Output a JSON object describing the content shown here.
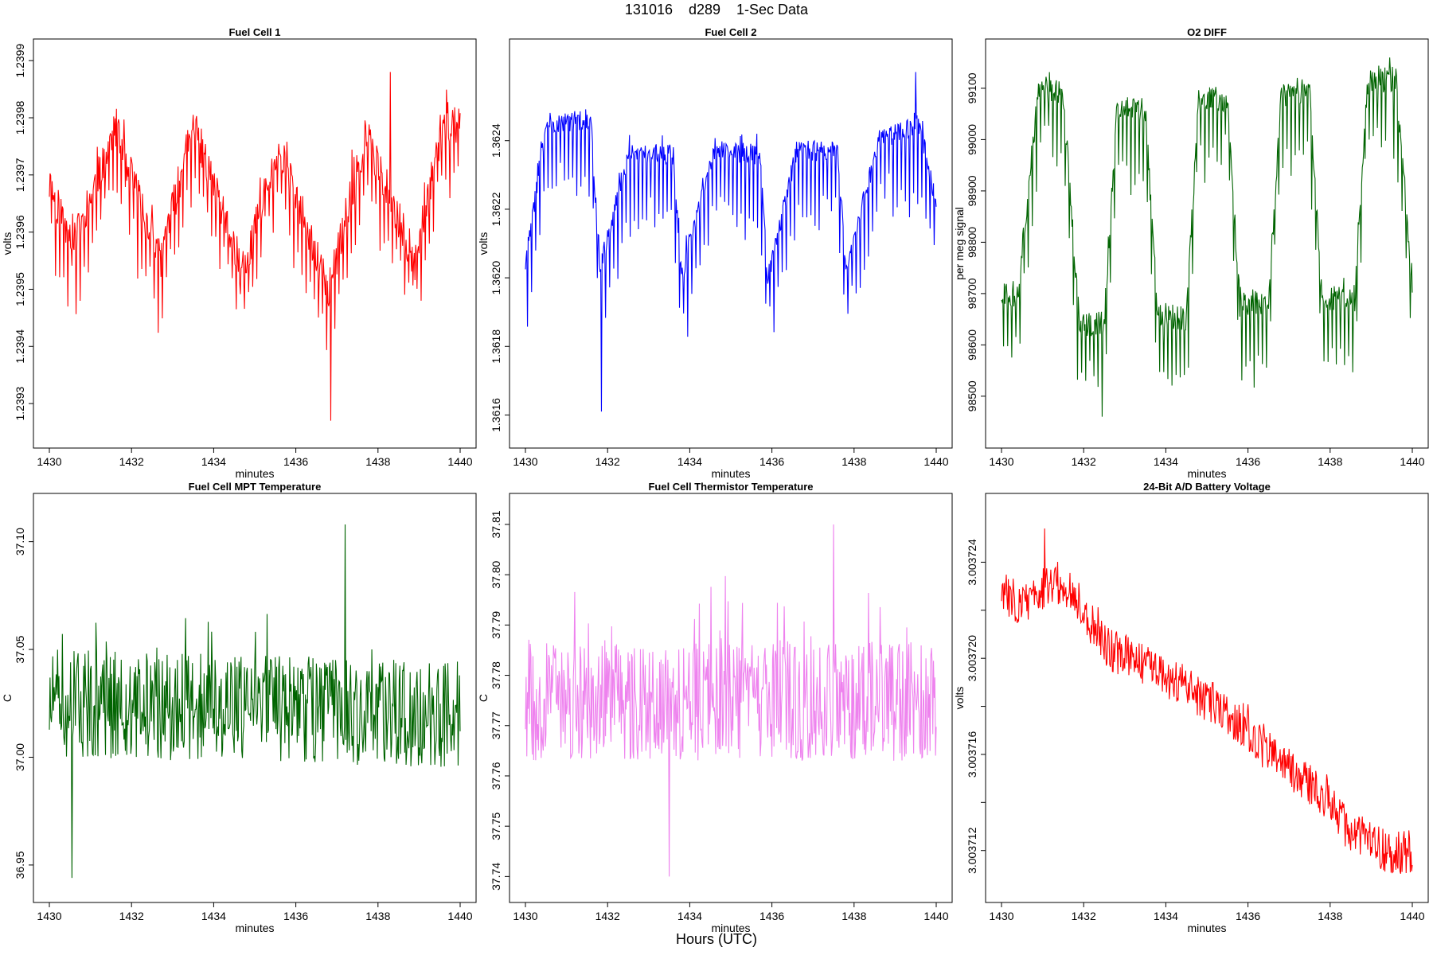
{
  "figure": {
    "title": "131016    d289    1-Sec Data",
    "xlabel": "Hours (UTC)"
  },
  "chart_data": [
    {
      "type": "line",
      "title": "Fuel Cell 1",
      "xlabel": "minutes",
      "ylabel": "volts",
      "color": "#ff0000",
      "xlim": [
        1430,
        1440
      ],
      "ylim": [
        1.23925,
        1.23991
      ],
      "xticks": [
        1430,
        1432,
        1434,
        1436,
        1438,
        1440
      ],
      "yticks": [
        1.2393,
        1.2394,
        1.2395,
        1.2396,
        1.2397,
        1.2398,
        1.2399
      ],
      "ytick_labels": [
        "1.2393",
        "1.2394",
        "1.2395",
        "1.2396",
        "1.2397",
        "1.2398",
        "1.2399"
      ],
      "pattern": {
        "levels": [
          [
            1430.0,
            1.23968
          ],
          [
            1430.6,
            1.23958
          ],
          [
            1431.6,
            1.23978
          ],
          [
            1432.7,
            1.23955
          ],
          [
            1433.5,
            1.23979
          ],
          [
            1434.7,
            1.23953
          ],
          [
            1435.6,
            1.23975
          ],
          [
            1436.8,
            1.2395
          ],
          [
            1437.7,
            1.23977
          ],
          [
            1438.9,
            1.23955
          ],
          [
            1439.6,
            1.2398
          ],
          [
            1440.0,
            1.23978
          ]
        ],
        "dip_depth": 0.00012,
        "noise": 3.5e-05,
        "spike_up": 5e-05,
        "seed": 11,
        "min_point": [
          1436.85,
          1.23927
        ],
        "max_point": [
          1438.3,
          1.23988
        ]
      }
    },
    {
      "type": "line",
      "title": "Fuel Cell 2",
      "xlabel": "minutes",
      "ylabel": "volts",
      "color": "#0000ff",
      "xlim": [
        1430,
        1440
      ],
      "ylim": [
        1.36155,
        1.36265
      ],
      "xticks": [
        1430,
        1432,
        1434,
        1436,
        1438,
        1440
      ],
      "yticks": [
        1.3616,
        1.3618,
        1.362,
        1.3622,
        1.3624
      ],
      "ytick_labels": [
        "1.3616",
        "1.3618",
        "1.3620",
        "1.3622",
        "1.3624"
      ],
      "pattern": {
        "levels": [
          [
            1430.0,
            1.36204
          ],
          [
            1430.5,
            1.36245
          ],
          [
            1431.6,
            1.36246
          ],
          [
            1431.8,
            1.36203
          ],
          [
            1432.5,
            1.36236
          ],
          [
            1433.6,
            1.36236
          ],
          [
            1433.8,
            1.36201
          ],
          [
            1434.6,
            1.36237
          ],
          [
            1435.7,
            1.36236
          ],
          [
            1435.9,
            1.362
          ],
          [
            1436.6,
            1.36237
          ],
          [
            1437.6,
            1.36237
          ],
          [
            1437.8,
            1.36202
          ],
          [
            1438.6,
            1.3624
          ],
          [
            1439.6,
            1.36245
          ],
          [
            1440.0,
            1.36222
          ]
        ],
        "dip_depth": 0.00024,
        "noise": 3e-05,
        "spike_up": 4e-05,
        "seed": 23,
        "min_point": [
          1431.85,
          1.36161
        ],
        "max_point": [
          1439.5,
          1.3626
        ]
      }
    },
    {
      "type": "line",
      "title": "O2 DIFF",
      "xlabel": "minutes",
      "ylabel": "per meg signal",
      "color": "#006400",
      "xlim": [
        1430,
        1440
      ],
      "ylim": [
        98430,
        99165
      ],
      "xticks": [
        1430,
        1432,
        1434,
        1436,
        1438,
        1440
      ],
      "yticks": [
        98500,
        98600,
        98700,
        98800,
        98900,
        99000,
        99100
      ],
      "ytick_labels": [
        "98500",
        "98600",
        "98700",
        "98800",
        "98900",
        "99000",
        "99100"
      ],
      "pattern": {
        "levels": [
          [
            1430.0,
            98700
          ],
          [
            1430.4,
            98700
          ],
          [
            1430.9,
            99100
          ],
          [
            1431.5,
            99090
          ],
          [
            1431.9,
            98640
          ],
          [
            1432.5,
            98640
          ],
          [
            1432.8,
            99050
          ],
          [
            1433.5,
            99060
          ],
          [
            1433.8,
            98660
          ],
          [
            1434.5,
            98650
          ],
          [
            1434.8,
            99080
          ],
          [
            1435.5,
            99080
          ],
          [
            1435.8,
            98680
          ],
          [
            1436.5,
            98680
          ],
          [
            1436.8,
            99080
          ],
          [
            1437.5,
            99100
          ],
          [
            1437.8,
            98690
          ],
          [
            1438.6,
            98690
          ],
          [
            1438.9,
            99110
          ],
          [
            1439.6,
            99120
          ],
          [
            1440.0,
            98720
          ]
        ],
        "dip_depth": 150,
        "noise": 25,
        "spike_up": 20,
        "seed": 37,
        "min_point": [
          1432.45,
          98460
        ],
        "max_point": [
          1439.45,
          99160
        ]
      }
    },
    {
      "type": "line",
      "title": "Fuel Cell MPT Temperature",
      "xlabel": "minutes",
      "ylabel": "C",
      "color": "#006400",
      "xlim": [
        1430,
        1440
      ],
      "ylim": [
        36.94,
        37.115
      ],
      "xticks": [
        1430,
        1432,
        1434,
        1436,
        1438,
        1440
      ],
      "yticks": [
        36.95,
        37.0,
        37.05,
        37.1
      ],
      "ytick_labels": [
        "36.95",
        "37.00",
        "37.05",
        "37.10"
      ],
      "pattern": {
        "levels": [
          [
            1430.0,
            37.025
          ],
          [
            1440.0,
            37.02
          ]
        ],
        "dip_depth": 0,
        "noise": 0.025,
        "spike_up": 0.03,
        "seed": 51,
        "min_point": [
          1430.55,
          36.944
        ],
        "max_point": [
          1437.2,
          37.108
        ]
      }
    },
    {
      "type": "line",
      "title": "Fuel Cell Thermistor Temperature",
      "xlabel": "minutes",
      "ylabel": "C",
      "color": "#ee82ee",
      "xlim": [
        1430,
        1440
      ],
      "ylim": [
        37.738,
        37.813
      ],
      "xticks": [
        1430,
        1432,
        1434,
        1436,
        1438,
        1440
      ],
      "yticks": [
        37.74,
        37.75,
        37.76,
        37.77,
        37.78,
        37.79,
        37.8,
        37.81
      ],
      "ytick_labels": [
        "37.74",
        "37.75",
        "37.76",
        "37.77",
        "37.78",
        "37.79",
        "37.80",
        "37.81"
      ],
      "pattern": {
        "levels": [
          [
            1430.0,
            37.775
          ],
          [
            1440.0,
            37.775
          ]
        ],
        "dip_depth": 0,
        "noise": 0.012,
        "spike_up": 0.014,
        "seed": 67,
        "min_point": [
          1433.5,
          37.74
        ],
        "max_point": [
          1437.5,
          37.81
        ]
      }
    },
    {
      "type": "line",
      "title": "24-Bit A/D Battery Voltage",
      "xlabel": "minutes",
      "ylabel": "volts",
      "color": "#ff0000",
      "xlim": [
        1430,
        1440
      ],
      "ylim": [
        3.0037105,
        3.0037262
      ],
      "xticks": [
        1430,
        1432,
        1434,
        1436,
        1438,
        1440
      ],
      "yticks": [
        3.003712,
        3.003714,
        3.003716,
        3.003718,
        3.00372,
        3.003722,
        3.003724
      ],
      "ytick_labels": [
        "3.003712",
        "",
        "3.003716",
        "",
        "3.003720",
        "",
        "3.003724"
      ],
      "pattern": {
        "levels": [
          [
            1430.0,
            3.0037228
          ],
          [
            1430.5,
            3.0037222
          ],
          [
            1431.2,
            3.0037232
          ],
          [
            1431.8,
            3.0037225
          ],
          [
            1432.5,
            3.0037205
          ],
          [
            1433.5,
            3.0037197
          ],
          [
            1434.5,
            3.0037188
          ],
          [
            1435.5,
            3.0037177
          ],
          [
            1436.5,
            3.003716
          ],
          [
            1437.5,
            3.0037148
          ],
          [
            1438.5,
            3.0037128
          ],
          [
            1439.5,
            3.0037118
          ],
          [
            1440.0,
            3.003712
          ]
        ],
        "dip_depth": 0,
        "noise": 9e-07,
        "spike_up": 7e-07,
        "seed": 83,
        "min_point": [
          1439.6,
          3.0037112
        ],
        "max_point": [
          1431.05,
          3.0037254
        ]
      }
    }
  ]
}
